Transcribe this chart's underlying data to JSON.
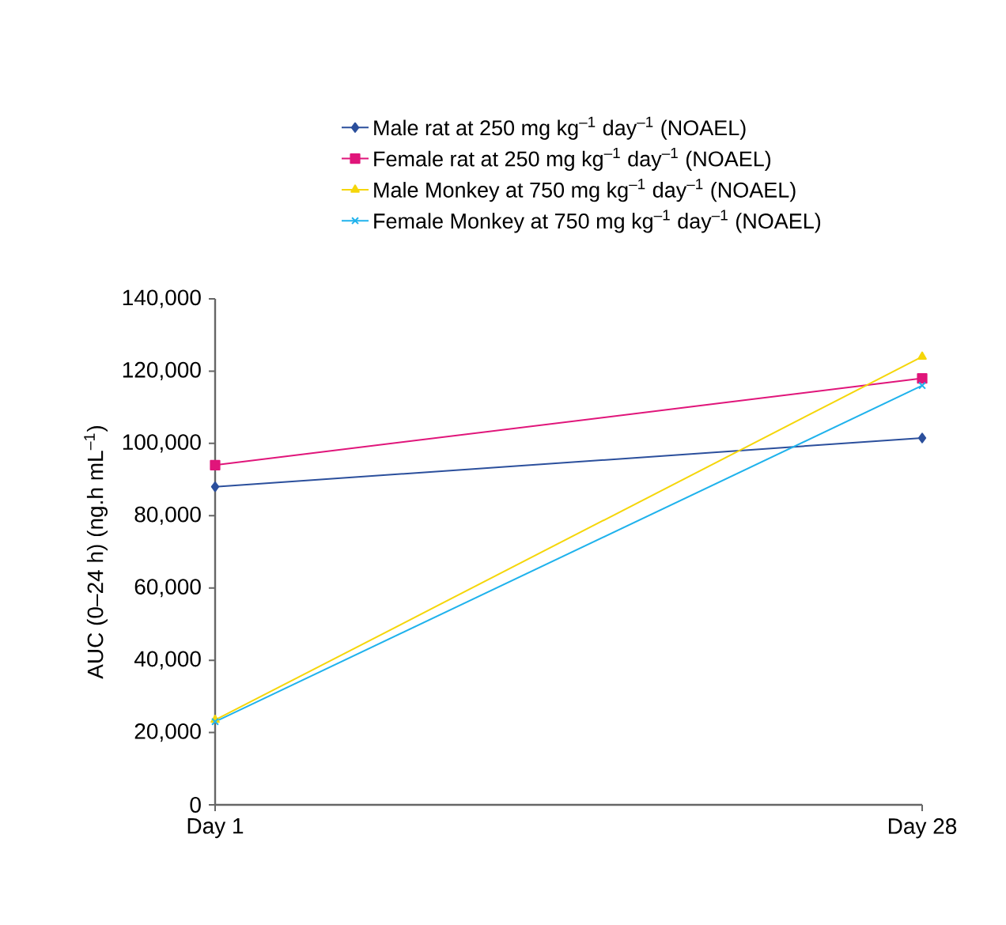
{
  "chart_data": {
    "type": "line",
    "ylabel": "AUC (0–24 h) (ng.h mL$^{–1}$)",
    "categories": [
      "Day 1",
      "Day 28"
    ],
    "series": [
      {
        "name": "Male rat at 250 mg kg$^{–1}$ day$^{–1}$ (NOAEL)",
        "color": "#2b4f9c",
        "marker": "diamond",
        "values": [
          88000,
          101500
        ]
      },
      {
        "name": "Female rat at 250 mg kg$^{–1}$ day$^{–1}$ (NOAEL)",
        "color": "#e0157a",
        "marker": "square",
        "values": [
          94000,
          118000
        ]
      },
      {
        "name": "Male Monkey at 750 mg kg$^{–1}$ day$^{–1}$ (NOAEL)",
        "color": "#f5d60a",
        "marker": "triangle",
        "values": [
          23500,
          124000
        ]
      },
      {
        "name": "Female Monkey at 750 mg kg$^{–1}$ day$^{–1}$ (NOAEL)",
        "color": "#1fb2ec",
        "marker": "cross",
        "values": [
          23000,
          116000
        ]
      }
    ],
    "ylim": [
      0,
      140000
    ],
    "yticks": [
      0,
      {
        "value": 20000,
        "label": "20,000"
      },
      {
        "value": 40000,
        "label": "40,000"
      },
      {
        "value": 60000,
        "label": "60,000"
      },
      {
        "value": 80000,
        "label": "80,000"
      },
      {
        "value": 100000,
        "label": "100,000"
      },
      {
        "value": 120000,
        "label": "120,000"
      },
      {
        "value": 140000,
        "label": "140,000"
      }
    ],
    "legend": "top"
  }
}
